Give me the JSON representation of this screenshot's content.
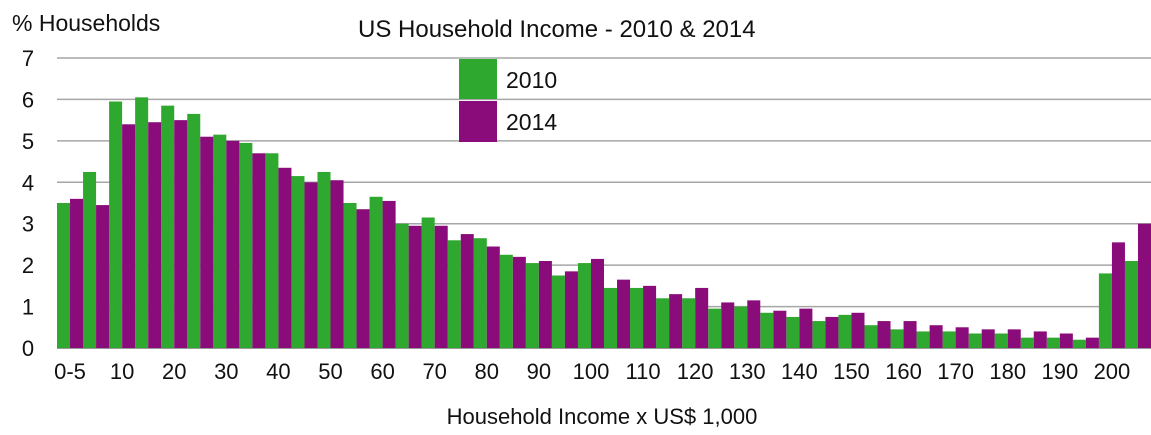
{
  "chart_data": {
    "type": "bar",
    "title": "US Household Income - 2010 & 2014",
    "ylabel": "% Households",
    "xlabel": "Household Income x US$ 1,000",
    "ylim": [
      0,
      7
    ],
    "yticks": [
      0,
      1,
      2,
      3,
      4,
      5,
      6,
      7
    ],
    "grid": true,
    "legend_position": "top-center",
    "xtick_labels": [
      "0-5",
      "10",
      "20",
      "30",
      "40",
      "50",
      "60",
      "70",
      "80",
      "90",
      "100",
      "110",
      "120",
      "130",
      "140",
      "150",
      "160",
      "170",
      "180",
      "190",
      "200"
    ],
    "num_categories": 42,
    "series": [
      {
        "name": "2010",
        "color": "#2ea82e",
        "values": [
          3.5,
          4.25,
          5.95,
          6.05,
          5.85,
          5.65,
          5.15,
          4.95,
          4.7,
          4.15,
          4.25,
          3.5,
          3.65,
          3.0,
          3.15,
          2.6,
          2.65,
          2.25,
          2.05,
          1.75,
          2.05,
          1.45,
          1.45,
          1.2,
          1.2,
          0.95,
          1.0,
          0.85,
          0.75,
          0.65,
          0.8,
          0.55,
          0.45,
          0.4,
          0.4,
          0.35,
          0.35,
          0.25,
          0.25,
          0.2,
          1.8,
          2.1
        ]
      },
      {
        "name": "2014",
        "color": "#8a0c7a",
        "values": [
          3.6,
          3.45,
          5.4,
          5.45,
          5.5,
          5.1,
          5.0,
          4.7,
          4.35,
          4.0,
          4.05,
          3.35,
          3.55,
          2.95,
          2.95,
          2.75,
          2.45,
          2.2,
          2.1,
          1.85,
          2.15,
          1.65,
          1.5,
          1.3,
          1.45,
          1.1,
          1.15,
          0.9,
          0.95,
          0.75,
          0.85,
          0.65,
          0.65,
          0.55,
          0.5,
          0.45,
          0.45,
          0.4,
          0.35,
          0.25,
          2.55,
          3.0
        ]
      }
    ]
  }
}
